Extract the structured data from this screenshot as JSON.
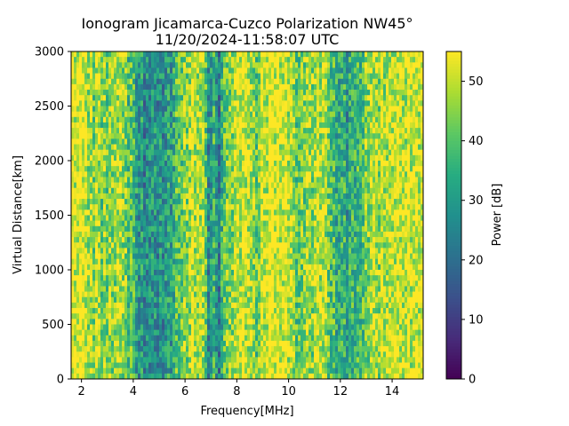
{
  "chart_data": {
    "type": "heatmap",
    "title": "Ionogram Jicamarca-Cuzco Polarization NW45°",
    "subtitle": "11/20/2024-11:58:07 UTC",
    "xlabel": "Frequency[MHz]",
    "ylabel": "Virtual Distance[km]",
    "xlim": [
      1.6,
      15.2
    ],
    "ylim": [
      0,
      3000
    ],
    "x_ticks": [
      2,
      4,
      6,
      8,
      10,
      12,
      14
    ],
    "y_ticks": [
      0,
      500,
      1000,
      1500,
      2000,
      2500,
      3000
    ],
    "colorbar": {
      "label": "Power [dB]",
      "colormap": "viridis",
      "range": [
        0,
        55
      ],
      "ticks": [
        0,
        10,
        20,
        30,
        40,
        50
      ]
    },
    "frequency_profile_mhz": [
      1.6,
      2.0,
      2.5,
      3.0,
      3.3,
      3.6,
      4.0,
      4.2,
      4.5,
      4.8,
      5.2,
      5.5,
      5.8,
      6.1,
      6.4,
      6.7,
      6.9,
      7.1,
      7.3,
      7.5,
      7.8,
      8.1,
      8.4,
      8.7,
      9.0,
      9.4,
      9.8,
      10.2,
      10.8,
      11.3,
      11.7,
      12.0,
      12.3,
      12.6,
      12.9,
      13.3,
      13.8,
      14.3,
      14.8,
      15.2
    ],
    "power_profile_db": [
      54,
      53,
      47,
      44,
      49,
      45,
      36,
      30,
      26,
      28,
      30,
      33,
      38,
      44,
      52,
      50,
      26,
      34,
      24,
      40,
      45,
      52,
      54,
      42,
      52,
      53,
      54,
      44,
      46,
      48,
      38,
      34,
      31,
      35,
      42,
      48,
      50,
      51,
      52,
      53
    ]
  }
}
